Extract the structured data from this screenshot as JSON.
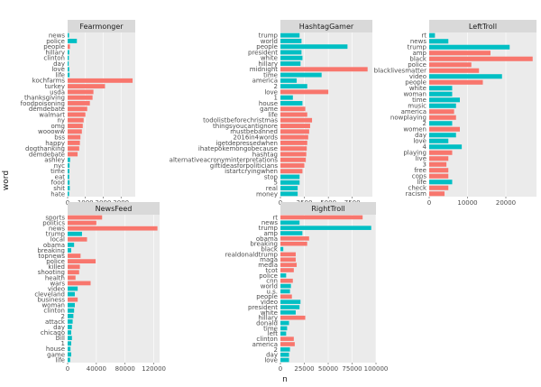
{
  "chart_data": {
    "type": "bar",
    "orientation": "horizontal",
    "layout": "facet_wrap",
    "xlabel": "n",
    "ylabel": "word",
    "colors": {
      "a": "#f8766d",
      "b": "#00bfc4",
      "panel": "#ebebeb",
      "strip": "#d9d9d9",
      "grid": "#ffffff"
    },
    "facets": [
      {
        "title": "Fearmonger",
        "xlim": [
          0,
          3800
        ],
        "xticks": [
          0,
          1000,
          2000,
          3000
        ],
        "xtick_labels": [
          "0",
          "1000",
          "2000",
          "3000"
        ],
        "words": [
          "news",
          "police",
          "people",
          "hillary",
          "clinton",
          "day",
          "love",
          "life",
          "kochfarms",
          "turkey",
          "usda",
          "thanksgiving",
          "foodpoisoning",
          "demdebate",
          "walmart",
          "ny",
          "omg",
          "woooww",
          "bss",
          "happy",
          "dogthanking",
          "demdebate",
          "ashley",
          "nyc",
          "time",
          "eat",
          "food",
          "shit",
          "hate"
        ],
        "values": [
          80,
          520,
          130,
          90,
          70,
          60,
          90,
          110,
          3650,
          2100,
          1450,
          1400,
          1250,
          1100,
          1000,
          900,
          850,
          800,
          720,
          690,
          650,
          560,
          140,
          110,
          100,
          90,
          110,
          120,
          80
        ],
        "groups": [
          "b",
          "b",
          "a",
          "b",
          "b",
          "b",
          "b",
          "b",
          "a",
          "a",
          "a",
          "a",
          "a",
          "a",
          "a",
          "a",
          "a",
          "a",
          "a",
          "a",
          "a",
          "a",
          "b",
          "b",
          "b",
          "b",
          "b",
          "b",
          "b"
        ]
      },
      {
        "title": "HashtagGamer",
        "xlim": [
          0,
          9600
        ],
        "xticks": [
          0,
          2500,
          5000,
          7500
        ],
        "xtick_labels": [
          "0",
          "2500",
          "5000",
          "7500"
        ],
        "words": [
          "trump",
          "world",
          "people",
          "president",
          "white",
          "hillary",
          "midnight",
          "time",
          "america",
          "2",
          "love",
          "1",
          "house",
          "game",
          "life",
          "todolistbeforechristmas",
          "thingsyoucantignore",
          "mustbebanned",
          "2016in4words",
          "igetdepressedwhen",
          "ihatepokemongobecause",
          "hashtag",
          "alternativeacronyminterpretations",
          "giftideasforpoliticians",
          "istartcryingwhen",
          "stop",
          "5",
          "real",
          "money"
        ],
        "values": [
          2000,
          2200,
          7000,
          2200,
          2300,
          2100,
          9100,
          4300,
          1700,
          2800,
          5000,
          1300,
          2300,
          2600,
          2800,
          3300,
          3100,
          3000,
          2900,
          2800,
          2750,
          2700,
          2650,
          2500,
          2300,
          2000,
          2000,
          1800,
          1800
        ],
        "groups": [
          "b",
          "b",
          "b",
          "b",
          "b",
          "b",
          "a",
          "b",
          "b",
          "b",
          "a",
          "b",
          "b",
          "a",
          "a",
          "a",
          "a",
          "a",
          "a",
          "a",
          "a",
          "a",
          "a",
          "a",
          "a",
          "b",
          "b",
          "b",
          "b"
        ]
      },
      {
        "title": "LeftTroll",
        "xlim": [
          0,
          28000
        ],
        "xticks": [
          0,
          10000,
          20000
        ],
        "xtick_labels": [
          "0",
          "10000",
          "20000"
        ],
        "words": [
          "rt",
          "news",
          "trump",
          "amp",
          "black",
          "police",
          "blacklivesmatter",
          "video",
          "people",
          "white",
          "woman",
          "time",
          "music",
          "america",
          "nowplaying",
          "2",
          "women",
          "day",
          "love",
          "4",
          "playing",
          "live",
          "3",
          "free",
          "cops",
          "life",
          "check",
          "racism"
        ],
        "values": [
          1500,
          5000,
          21000,
          16000,
          27000,
          11000,
          13000,
          19000,
          14000,
          6000,
          6000,
          8000,
          7000,
          6500,
          7000,
          6000,
          8000,
          7000,
          5000,
          8500,
          6000,
          5000,
          4500,
          5000,
          5000,
          6000,
          5000,
          4000
        ],
        "groups": [
          "b",
          "b",
          "b",
          "a",
          "a",
          "a",
          "a",
          "b",
          "a",
          "b",
          "b",
          "b",
          "b",
          "a",
          "a",
          "b",
          "a",
          "b",
          "b",
          "b",
          "a",
          "a",
          "a",
          "a",
          "a",
          "b",
          "a",
          "a"
        ]
      },
      {
        "title": "NewsFeed",
        "xlim": [
          0,
          128000
        ],
        "xticks": [
          0,
          40000,
          80000,
          120000
        ],
        "xtick_labels": [
          "0",
          "40000",
          "80000",
          "120000"
        ],
        "words": [
          "sports",
          "politics",
          "news",
          "trump",
          "local",
          "obama",
          "breaking",
          "topnews",
          "police",
          "killed",
          "shooting",
          "health",
          "wars",
          "video",
          "cleveland",
          "business",
          "woman",
          "clinton",
          "2",
          "attack",
          "day",
          "chicago",
          "bill",
          "1",
          "house",
          "game",
          "life"
        ],
        "values": [
          48000,
          40000,
          125000,
          20000,
          27000,
          9000,
          5000,
          18000,
          39000,
          17000,
          16000,
          11000,
          32000,
          14000,
          10000,
          14000,
          10000,
          9000,
          8000,
          7000,
          6000,
          5000,
          6000,
          5000,
          4000,
          5000,
          3500
        ],
        "groups": [
          "a",
          "a",
          "a",
          "b",
          "a",
          "b",
          "b",
          "a",
          "a",
          "a",
          "a",
          "a",
          "a",
          "b",
          "b",
          "a",
          "b",
          "b",
          "b",
          "b",
          "b",
          "b",
          "b",
          "b",
          "b",
          "b",
          "b"
        ]
      },
      {
        "title": "RightTroll",
        "xlim": [
          0,
          100000
        ],
        "xticks": [
          0,
          25000,
          50000,
          75000,
          100000
        ],
        "xtick_labels": [
          "0",
          "25000",
          "50000",
          "75000",
          "100000"
        ],
        "words": [
          "rt",
          "news",
          "trump",
          "amp",
          "obama",
          "breaking",
          "black",
          "realdonaldtrump",
          "maga",
          "media",
          "tcot",
          "police",
          "cnn",
          "world",
          "u.s.",
          "people",
          "video",
          "president",
          "white",
          "hillary",
          "donald",
          "time",
          "left",
          "clinton",
          "america",
          "2",
          "day",
          "love"
        ],
        "values": [
          86000,
          20000,
          95000,
          23000,
          30000,
          28000,
          3000,
          16000,
          16000,
          17000,
          14000,
          6000,
          13000,
          11000,
          10000,
          12000,
          21000,
          20000,
          16000,
          26000,
          9000,
          7000,
          6000,
          14000,
          15000,
          10000,
          9000,
          9000
        ],
        "groups": [
          "a",
          "b",
          "b",
          "b",
          "a",
          "a",
          "b",
          "a",
          "a",
          "a",
          "a",
          "b",
          "a",
          "b",
          "b",
          "a",
          "b",
          "b",
          "b",
          "a",
          "b",
          "b",
          "b",
          "a",
          "a",
          "b",
          "b",
          "b"
        ]
      }
    ]
  }
}
